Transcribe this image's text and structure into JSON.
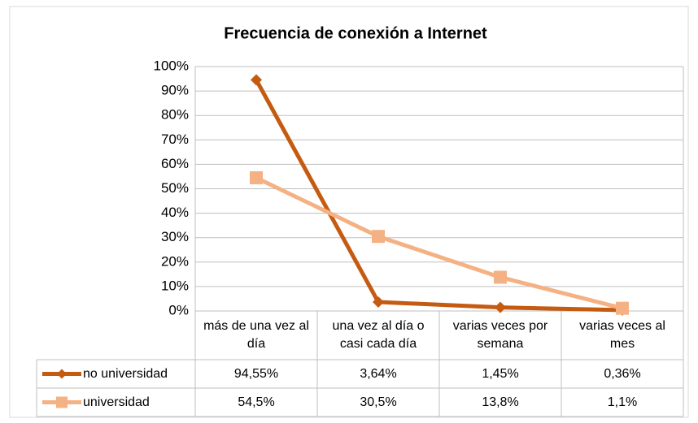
{
  "chart_data": {
    "type": "line",
    "title": "Frecuencia de conexión a Internet",
    "categories": [
      "más de una vez al día",
      "una vez al día o casi cada día",
      "varias veces por semana",
      "varias veces al mes"
    ],
    "series": [
      {
        "name": "no universidad",
        "color": "#c55a11",
        "marker": "diamond",
        "values": [
          94.55,
          3.64,
          1.45,
          0.36
        ],
        "value_labels": [
          "94,55%",
          "3,64%",
          "1,45%",
          "0,36%"
        ]
      },
      {
        "name": "universidad",
        "color": "#f4b183",
        "marker": "square",
        "values": [
          54.5,
          30.5,
          13.8,
          1.1
        ],
        "value_labels": [
          "54,5%",
          "30,5%",
          "13,8%",
          "1,1%"
        ]
      }
    ],
    "ylim": [
      0,
      100
    ],
    "yticks": [
      {
        "value": 0,
        "label": "0%"
      },
      {
        "value": 10,
        "label": "10%"
      },
      {
        "value": 20,
        "label": "20%"
      },
      {
        "value": 30,
        "label": "30%"
      },
      {
        "value": 40,
        "label": "40%"
      },
      {
        "value": 50,
        "label": "50%"
      },
      {
        "value": 60,
        "label": "60%"
      },
      {
        "value": 70,
        "label": "70%"
      },
      {
        "value": 80,
        "label": "80%"
      },
      {
        "value": 90,
        "label": "90%"
      },
      {
        "value": 100,
        "label": "100%"
      }
    ],
    "grid": true,
    "data_table": true
  }
}
